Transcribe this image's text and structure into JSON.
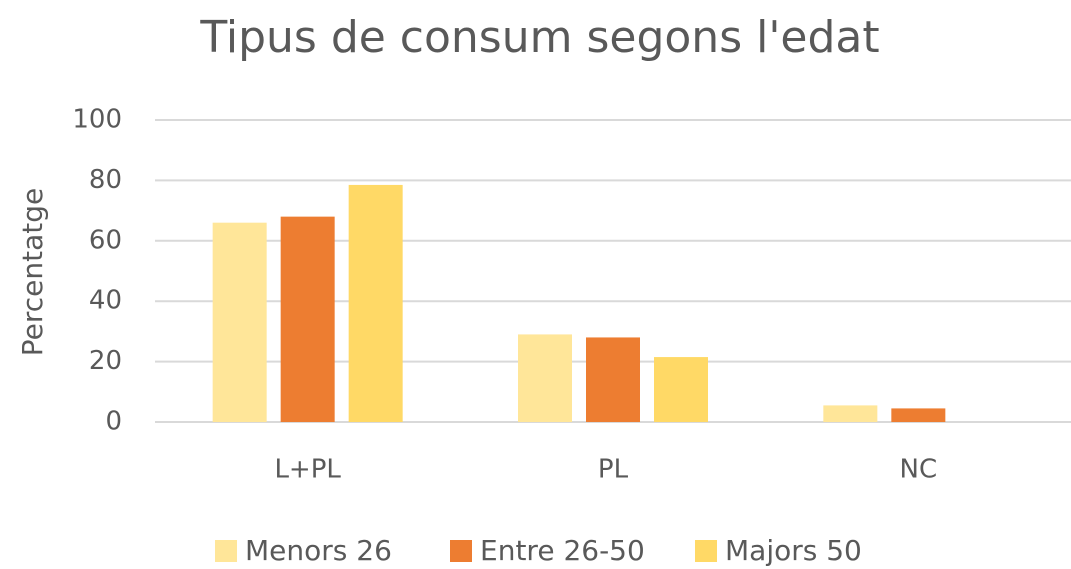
{
  "chart_data": {
    "type": "bar",
    "title": "Tipus de consum segons l'edat",
    "y_label": "Percentatge",
    "categories": [
      "L+PL",
      "PL",
      "NC"
    ],
    "series": [
      {
        "name": "Menors 26",
        "color": "#FFE699",
        "values": [
          66,
          29,
          5.5
        ]
      },
      {
        "name": "Entre 26-50",
        "color": "#ED7D31",
        "values": [
          68,
          28,
          4.5
        ]
      },
      {
        "name": "Majors 50",
        "color": "#FFD966",
        "values": [
          78.5,
          21.5,
          0
        ]
      }
    ],
    "ylim": [
      0,
      100
    ],
    "yticks": [
      0,
      20,
      40,
      60,
      80,
      100
    ],
    "grid": true,
    "legend": "bottom"
  }
}
